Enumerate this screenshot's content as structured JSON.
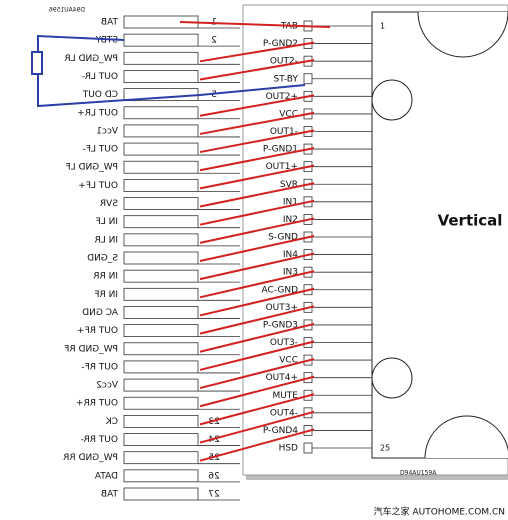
{
  "left": {
    "code": "D94AU1596",
    "pins": [
      {
        "label": "TAB",
        "num": "1"
      },
      {
        "label": "STBY",
        "num": "2"
      },
      {
        "label": "PW_GND LR"
      },
      {
        "label": "OUT LR-"
      },
      {
        "label": "CD OUT",
        "num": "5"
      },
      {
        "label": "OUT LR+"
      },
      {
        "label": "Vcc1"
      },
      {
        "label": "OUT LF-"
      },
      {
        "label": "PW_GND LF"
      },
      {
        "label": "OUT LF+"
      },
      {
        "label": "SVR"
      },
      {
        "label": "IN LF"
      },
      {
        "label": "IN LR"
      },
      {
        "label": "S_GND"
      },
      {
        "label": "IN RR"
      },
      {
        "label": "IN RF"
      },
      {
        "label": "AC GND"
      },
      {
        "label": "OUT RF+"
      },
      {
        "label": "PW_GND RF"
      },
      {
        "label": "OUT RF-"
      },
      {
        "label": "Vcc2"
      },
      {
        "label": "OUT RR+"
      },
      {
        "label": "CK",
        "num": "23"
      },
      {
        "label": "OUT RR-",
        "num": "24"
      },
      {
        "label": "PW_GND RR",
        "num": "25"
      },
      {
        "label": "DATA",
        "num": "26"
      },
      {
        "label": "TAB",
        "num": "27"
      }
    ]
  },
  "right": {
    "pins": [
      "TAB",
      "P-GND2",
      "OUT2-",
      "ST-BY",
      "OUT2+",
      "VCC",
      "OUT1-",
      "P-GND1",
      "OUT1+",
      "SVR",
      "IN1",
      "IN2",
      "S-GND",
      "IN4",
      "IN3",
      "AC-GND",
      "OUT3+",
      "P-GND3",
      "OUT3-",
      "VCC",
      "OUT4+",
      "MUTE",
      "OUT4-",
      "P-GND4",
      "HSD"
    ],
    "first_num": "1",
    "last_num": "25",
    "package": "Vertical",
    "code": "D94AU159A"
  },
  "watermark": "汽车之家 AUTOHOME.COM.CN"
}
